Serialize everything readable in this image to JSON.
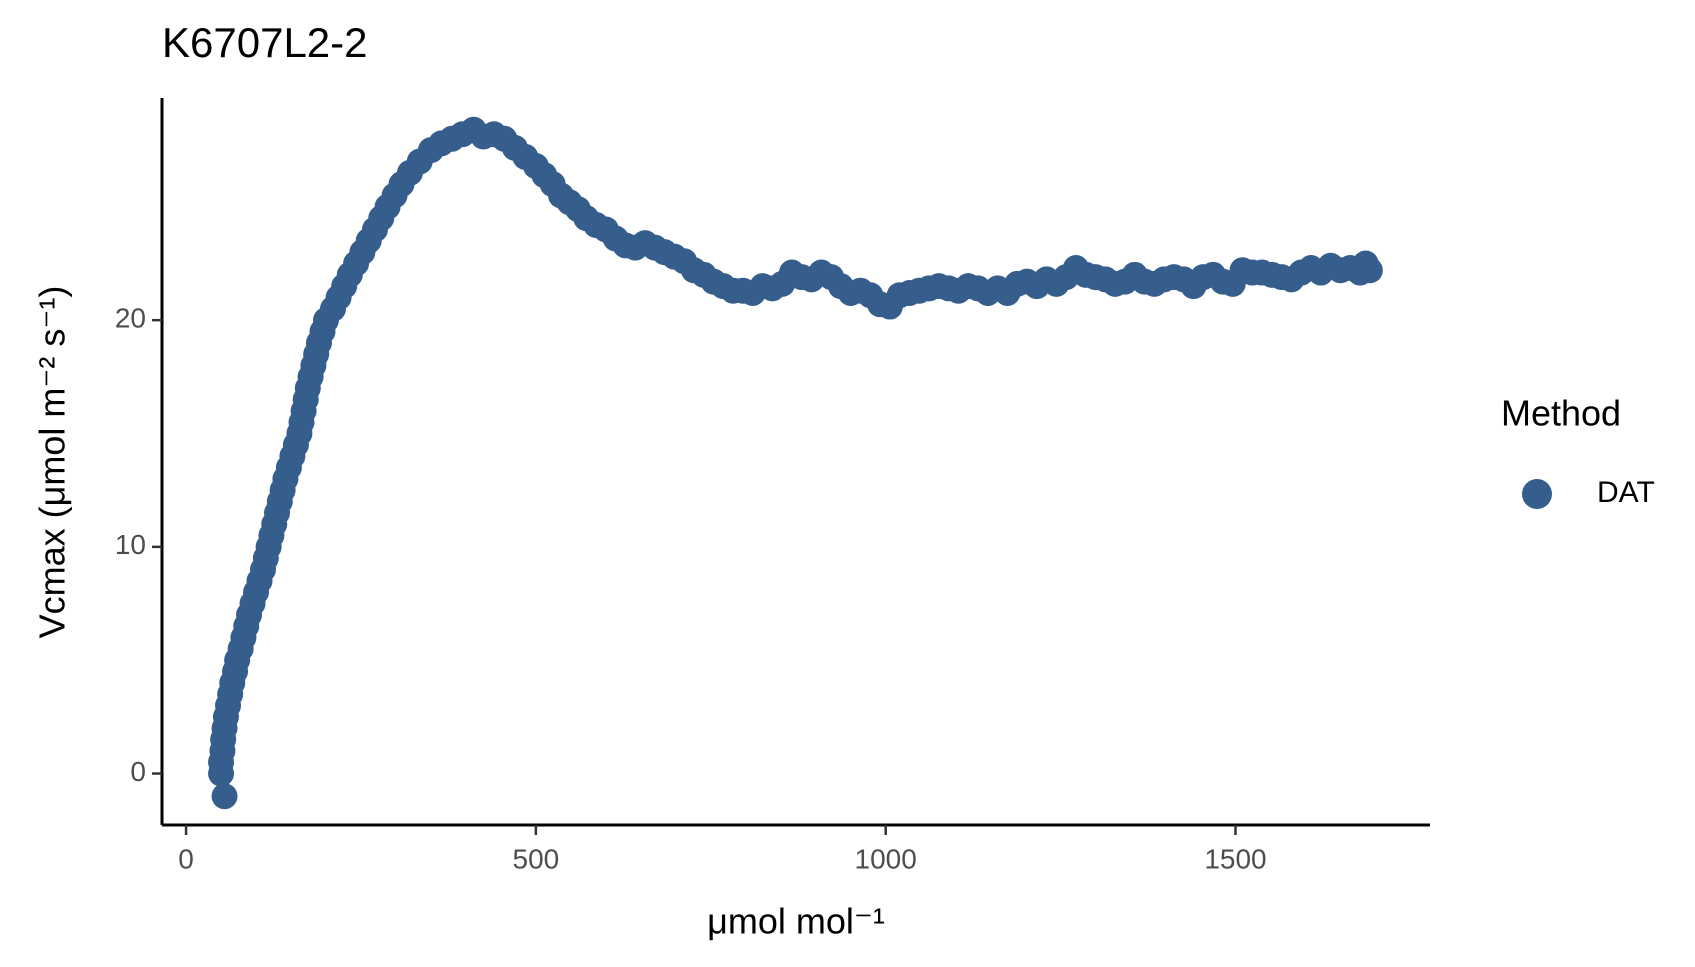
{
  "chart_data": {
    "type": "scatter",
    "title": "K6707L2-2",
    "x_label": "μmol mol⁻¹",
    "y_label": "Vcmax (μmol m⁻² s⁻¹)",
    "legend_title": "Method",
    "xlim": [
      -34.4,
      1778
    ],
    "ylim": [
      -2.27,
      29.8
    ],
    "xticks": [
      0,
      500,
      1000,
      1500
    ],
    "yticks": [
      0,
      10,
      20
    ],
    "series": [
      {
        "name": "DAT",
        "color": "#365e8c",
        "x": [
          55,
          50,
          50,
          52,
          53,
          55,
          57,
          60,
          63,
          66,
          70,
          73,
          78,
          82,
          86,
          90,
          95,
          100,
          105,
          110,
          114,
          118,
          122,
          126,
          130,
          134,
          138,
          142,
          147,
          152,
          157,
          162,
          165,
          168,
          171,
          174,
          178,
          182,
          186,
          190,
          195,
          200,
          210,
          218,
          226,
          234,
          243,
          252,
          261,
          270,
          279,
          288,
          298,
          308,
          320,
          334,
          350,
          365,
          380,
          395,
          411,
          425,
          440,
          455,
          470,
          485,
          500,
          512,
          524,
          536,
          548,
          560,
          572,
          586,
          600,
          614,
          628,
          642,
          656,
          670,
          684,
          698,
          712,
          726,
          740,
          754,
          768,
          782,
          796,
          810,
          824,
          838,
          852,
          866,
          880,
          894,
          908,
          922,
          936,
          950,
          964,
          978,
          992,
          1006,
          1020,
          1034,
          1048,
          1062,
          1076,
          1090,
          1104,
          1118,
          1132,
          1146,
          1160,
          1174,
          1188,
          1202,
          1216,
          1230,
          1244,
          1258,
          1272,
          1286,
          1300,
          1314,
          1328,
          1342,
          1356,
          1370,
          1384,
          1398,
          1412,
          1426,
          1440,
          1454,
          1468,
          1482,
          1496,
          1510,
          1524,
          1538,
          1552,
          1566,
          1580,
          1594,
          1608,
          1622,
          1636,
          1650,
          1664,
          1678,
          1686,
          1692
        ],
        "values": [
          -1,
          0,
          0.5,
          1,
          1.5,
          2,
          2.5,
          3,
          3.5,
          4,
          4.5,
          5,
          5.5,
          6,
          6.5,
          7,
          7.5,
          8,
          8.5,
          9,
          9.5,
          10,
          10.5,
          11,
          11.5,
          12,
          12.5,
          13,
          13.5,
          14,
          14.5,
          15,
          15.5,
          16,
          16.5,
          17,
          17.5,
          18,
          18.5,
          19,
          19.5,
          20,
          20.5,
          21,
          21.5,
          22,
          22.5,
          23,
          23.5,
          24,
          24.5,
          25,
          25.5,
          26,
          26.5,
          27,
          27.5,
          27.8,
          28,
          28.2,
          28.4,
          28.1,
          28.2,
          28,
          27.6,
          27.2,
          26.8,
          26.4,
          26,
          25.5,
          25.2,
          24.9,
          24.5,
          24.2,
          24,
          23.6,
          23.3,
          23.2,
          23.4,
          23.2,
          23,
          22.8,
          22.6,
          22.2,
          22,
          21.7,
          21.5,
          21.3,
          21.3,
          21.2,
          21.5,
          21.4,
          21.6,
          22.1,
          21.9,
          21.8,
          22.1,
          21.9,
          21.5,
          21.2,
          21.3,
          21.1,
          20.7,
          20.6,
          21.1,
          21.2,
          21.3,
          21.4,
          21.5,
          21.4,
          21.3,
          21.5,
          21.4,
          21.2,
          21.4,
          21.2,
          21.6,
          21.7,
          21.5,
          21.8,
          21.6,
          21.9,
          22.3,
          22,
          21.9,
          21.8,
          21.6,
          21.7,
          22,
          21.7,
          21.6,
          21.8,
          21.9,
          21.8,
          21.5,
          21.9,
          22,
          21.7,
          21.6,
          22.2,
          22.1,
          22.1,
          22,
          21.9,
          21.8,
          22.1,
          22.3,
          22.1,
          22.4,
          22.2,
          22.3,
          22.1,
          22.5,
          22.2
        ]
      }
    ]
  }
}
